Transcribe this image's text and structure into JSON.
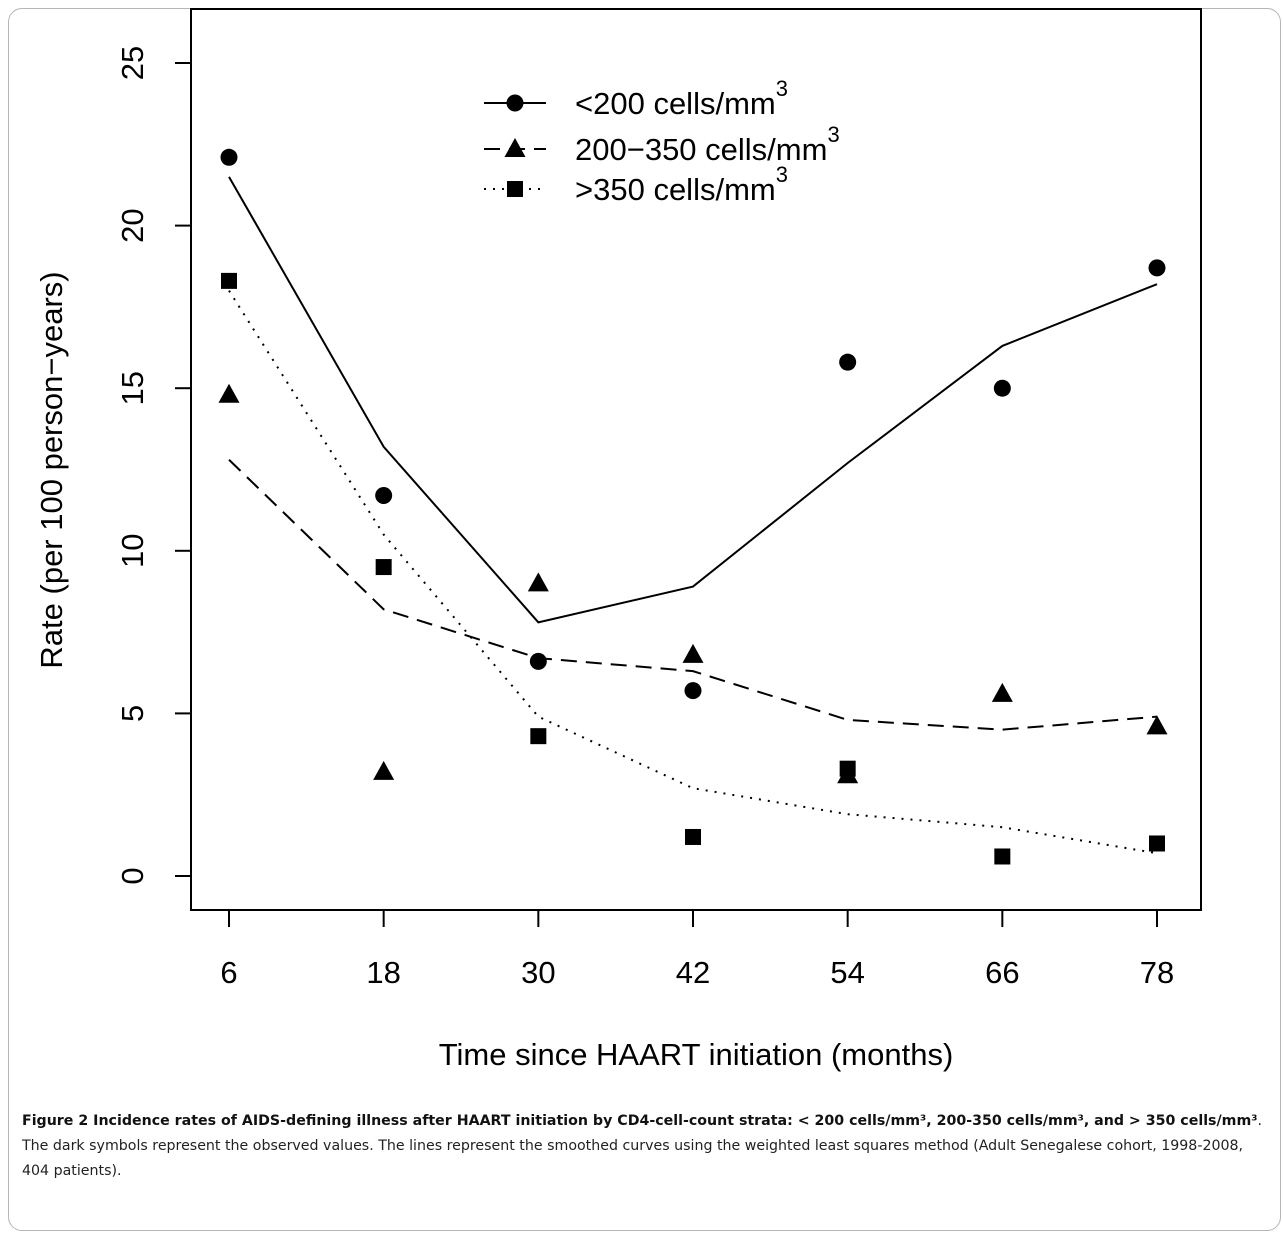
{
  "chart_data": {
    "type": "line",
    "xlabel": "Time since HAART initiation (months)",
    "ylabel": "Rate (per 100 person−years)",
    "x": [
      6,
      18,
      30,
      42,
      54,
      66,
      78
    ],
    "x_tick_labels": [
      "6",
      "18",
      "30",
      "42",
      "54",
      "66",
      "78"
    ],
    "ylim": [
      0,
      25
    ],
    "y_ticks": [
      0,
      5,
      10,
      15,
      20,
      25
    ],
    "y_tick_labels": [
      "0",
      "5",
      "10",
      "15",
      "20",
      "25"
    ],
    "grid": false,
    "legend_position": "top",
    "series": [
      {
        "name": "<200 cells/mm",
        "superscript": "3",
        "marker": "circle",
        "line_style": "solid",
        "observed": [
          22.1,
          11.7,
          6.6,
          5.7,
          15.8,
          15.0,
          18.7
        ],
        "smoothed": [
          21.5,
          13.2,
          7.8,
          8.9,
          12.7,
          16.3,
          18.2
        ]
      },
      {
        "name": "200−350 cells/mm",
        "superscript": "3",
        "marker": "triangle",
        "line_style": "dashed",
        "observed": [
          14.8,
          3.2,
          9.0,
          6.8,
          3.1,
          5.6,
          4.6
        ],
        "smoothed": [
          12.8,
          8.2,
          6.7,
          6.3,
          4.8,
          4.5,
          4.9
        ]
      },
      {
        "name": ">350 cells/mm",
        "superscript": "3",
        "marker": "square",
        "line_style": "dotted",
        "observed": [
          18.3,
          9.5,
          4.3,
          1.2,
          3.3,
          0.6,
          1.0
        ],
        "smoothed": [
          18.0,
          10.5,
          4.9,
          2.7,
          1.9,
          1.5,
          0.7
        ]
      }
    ]
  },
  "caption": {
    "bold": "Figure 2 Incidence rates of AIDS-defining illness after HAART initiation by CD4-cell-count strata: < 200 cells/mm³, 200-350 cells/mm³, and > 350 cells/mm³",
    "text": ". The dark symbols represent the observed values. The lines represent the smoothed curves using the weighted least squares method (Adult Senegalese cohort, 1998-2008, 404 patients)."
  }
}
